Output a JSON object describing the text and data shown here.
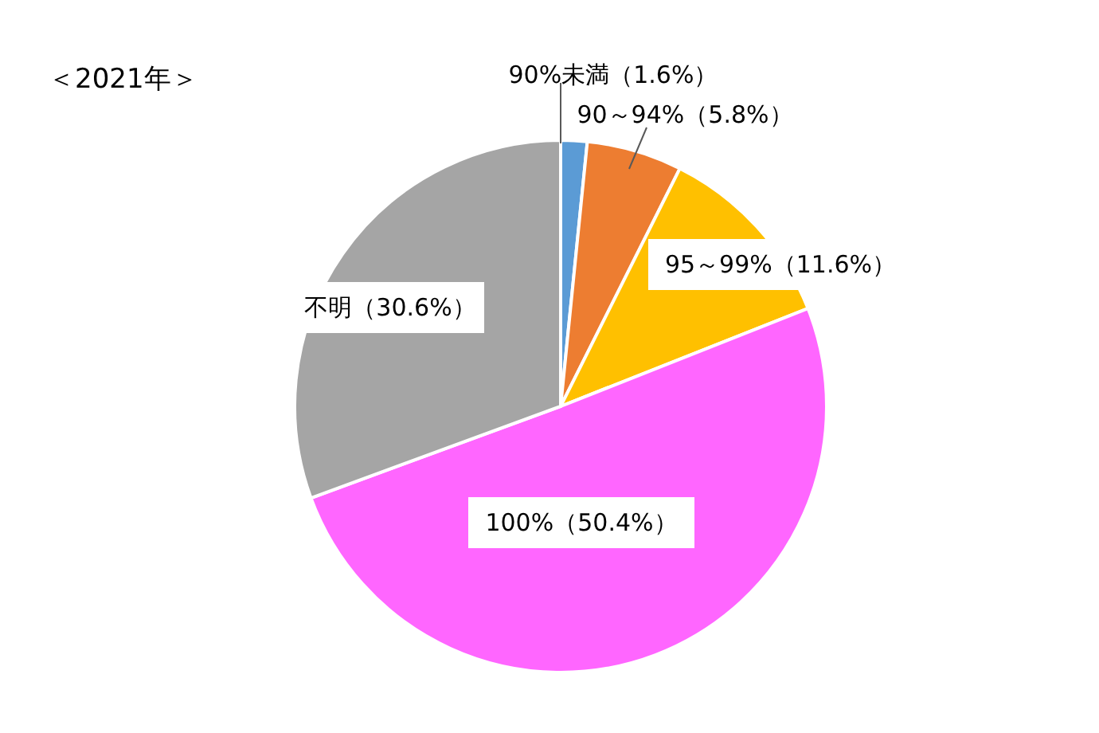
{
  "chart_data": {
    "type": "pie",
    "title": "＜2021年＞",
    "categories": [
      "90%未満",
      "90～94%",
      "95～99%",
      "100%",
      "不明"
    ],
    "values": [
      1.6,
      5.8,
      11.6,
      50.4,
      30.6
    ],
    "value_labels": [
      "（1.6%）",
      "（5.8%）",
      "（11.6%）",
      "（50.4%）",
      "（30.6%）"
    ],
    "colors": [
      "#5b9bd5",
      "#ed7d31",
      "#ffc000",
      "#ff66ff",
      "#a5a5a5"
    ],
    "legend": false
  }
}
